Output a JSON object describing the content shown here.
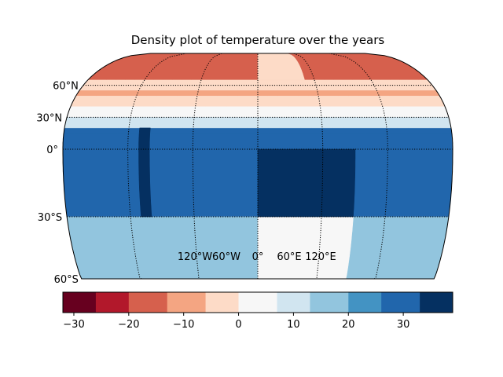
{
  "title": "Density plot of temperature over the years",
  "lat_labels": [
    {
      "text": "60°N",
      "lat": 60
    },
    {
      "text": "30°N",
      "lat": 30
    },
    {
      "text": "0°",
      "lat": 0
    },
    {
      "text": "30°S",
      "lat": -30
    },
    {
      "text": "60°S",
      "lat": -60
    }
  ],
  "lon_labels": [
    {
      "text": "120°W",
      "lon": -120
    },
    {
      "text": "60°W",
      "lon": -60
    },
    {
      "text": "0°",
      "lon": 0
    },
    {
      "text": "60°E",
      "lon": 60
    },
    {
      "text": "120°E",
      "lon": 120
    }
  ],
  "colorbar": {
    "min": -32,
    "max": 39,
    "boundaries": [
      -32,
      -26,
      -20,
      -13,
      -6,
      0,
      7,
      13,
      20,
      26,
      33,
      39
    ],
    "colors": [
      "#67001f",
      "#b2182b",
      "#d6604d",
      "#f4a582",
      "#fddbc7",
      "#f7f7f7",
      "#d1e5f0",
      "#92c5de",
      "#4393c3",
      "#2166ac",
      "#053061"
    ],
    "tick_values": [
      -30,
      -20,
      -10,
      0,
      10,
      20,
      30
    ],
    "tick_labels": [
      "−30",
      "−20",
      "−10",
      "0",
      "10",
      "20",
      "30"
    ]
  },
  "chart_data": {
    "type": "heatmap",
    "title": "Density plot of temperature over the years",
    "projection": "robinson",
    "lon_range": [
      -180,
      180
    ],
    "lat_range": [
      -90,
      90
    ],
    "gridlines": {
      "lats": [
        -60,
        -30,
        0,
        30,
        60
      ],
      "lons": [
        -120,
        -60,
        0,
        60,
        120
      ]
    },
    "regions": [
      {
        "lat": [
          15,
          90
        ],
        "lon": [
          -180,
          180
        ],
        "value": 30
      },
      {
        "lat": [
          -30,
          15
        ],
        "lon": [
          -180,
          180
        ],
        "value": 30
      },
      {
        "lat": [
          -90,
          -30
        ],
        "lon": [
          -180,
          180
        ],
        "value": 18
      },
      {
        "lat": [
          65,
          90
        ],
        "lon": [
          -180,
          -60
        ],
        "value": -15
      },
      {
        "lat": [
          65,
          90
        ],
        "lon": [
          -60,
          0
        ],
        "value": -20
      },
      {
        "lat": [
          65,
          90
        ],
        "lon": [
          0,
          50
        ],
        "value": -3
      },
      {
        "lat": [
          65,
          90
        ],
        "lon": [
          50,
          180
        ],
        "value": -20
      },
      {
        "lat": [
          55,
          65
        ],
        "lon": [
          -180,
          180
        ],
        "value": -3
      },
      {
        "lat": [
          50,
          55
        ],
        "lon": [
          -180,
          180
        ],
        "value": -12
      },
      {
        "lat": [
          40,
          50
        ],
        "lon": [
          -180,
          180
        ],
        "value": -3
      },
      {
        "lat": [
          30,
          40
        ],
        "lon": [
          -180,
          180
        ],
        "value": 2
      },
      {
        "lat": [
          20,
          30
        ],
        "lon": [
          -180,
          180
        ],
        "value": 10
      },
      {
        "lat": [
          -90,
          -30
        ],
        "lon": [
          -80,
          0
        ],
        "value": 15
      },
      {
        "lat": [
          -90,
          -30
        ],
        "lon": [
          0,
          90
        ],
        "value": 4
      },
      {
        "lat": [
          -30,
          0
        ],
        "lon": [
          0,
          90
        ],
        "value": 36
      },
      {
        "lat": [
          -30,
          20
        ],
        "lon": [
          -110,
          -100
        ],
        "value": 36
      }
    ]
  }
}
